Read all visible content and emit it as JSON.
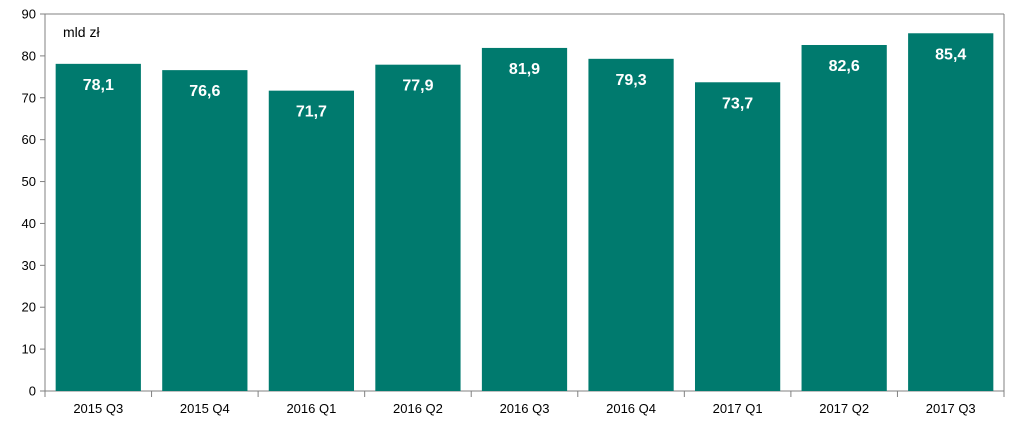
{
  "chart_data": {
    "type": "bar",
    "categories": [
      "2015 Q3",
      "2015 Q4",
      "2016 Q1",
      "2016 Q2",
      "2016 Q3",
      "2016 Q4",
      "2017 Q1",
      "2017 Q2",
      "2017 Q3"
    ],
    "values": [
      78.1,
      76.6,
      71.7,
      77.9,
      81.9,
      79.3,
      73.7,
      82.6,
      85.4
    ],
    "data_labels": [
      "78,1",
      "76,6",
      "71,7",
      "77,9",
      "81,9",
      "79,3",
      "73,7",
      "82,6",
      "85,4"
    ],
    "unit_label": "mld zł",
    "ylim": [
      0,
      90
    ],
    "yticks": [
      0,
      10,
      20,
      30,
      40,
      50,
      60,
      70,
      80,
      90
    ],
    "grid": false,
    "legend": "none",
    "bar_color": "#007A6E",
    "label_color": "#ffffff"
  }
}
